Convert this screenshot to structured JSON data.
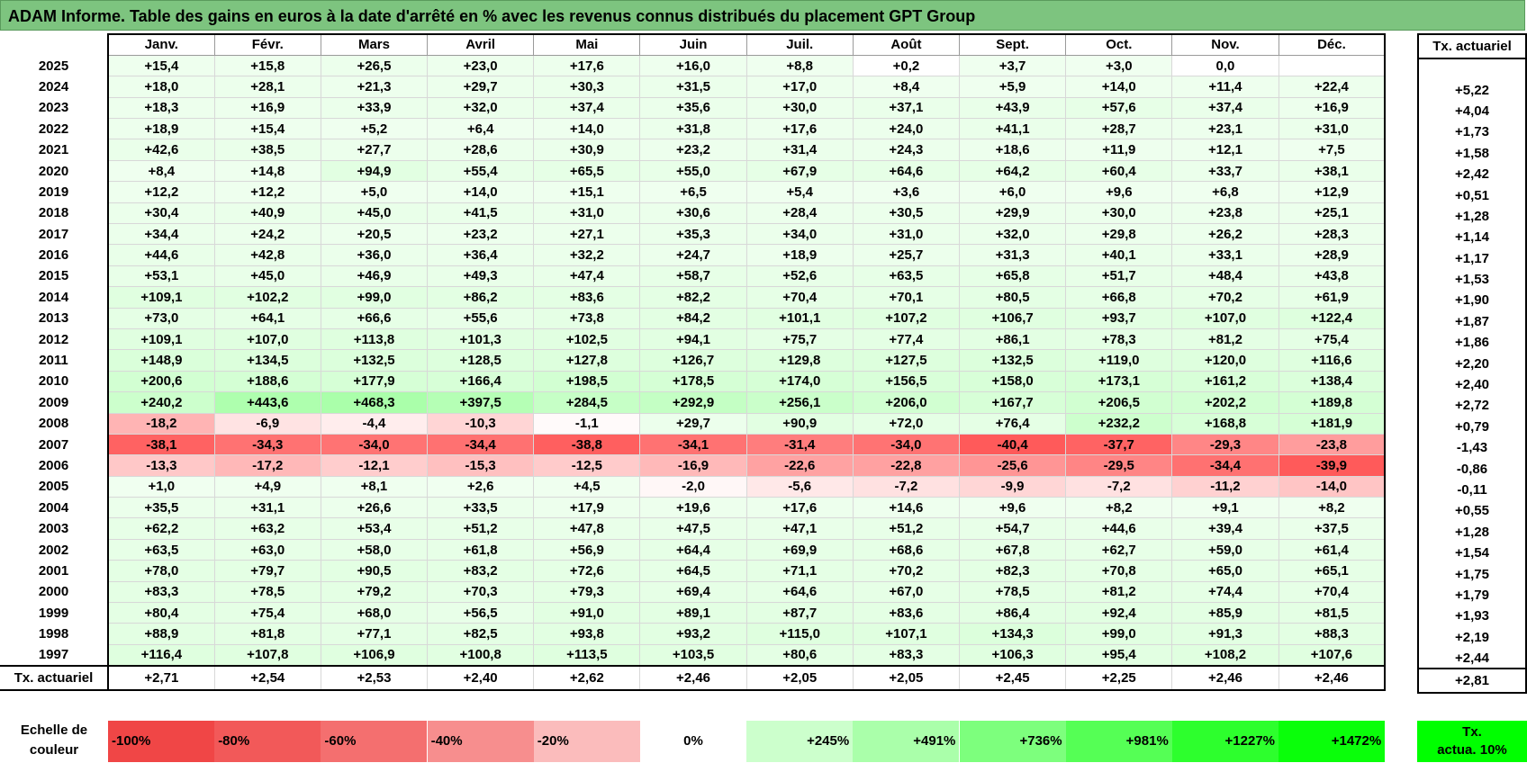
{
  "title": "ADAM Informe. Table des gains en euros à la date d'arrêté en % avec les revenus connus distribués du placement GPT Group",
  "months": [
    "Janv.",
    "Févr.",
    "Mars",
    "Avril",
    "Mai",
    "Juin",
    "Juil.",
    "Août",
    "Sept.",
    "Oct.",
    "Nov.",
    "Déc."
  ],
  "rate_header": "Tx. actuariel",
  "rows": [
    {
      "year": "2025",
      "values": [
        "+15,4",
        "+15,8",
        "+26,5",
        "+23,0",
        "+17,6",
        "+16,0",
        "+8,8",
        "+0,2",
        "+3,7",
        "+3,0",
        "0,0",
        ""
      ],
      "rate": ""
    },
    {
      "year": "2024",
      "values": [
        "+18,0",
        "+28,1",
        "+21,3",
        "+29,7",
        "+30,3",
        "+31,5",
        "+17,0",
        "+8,4",
        "+5,9",
        "+14,0",
        "+11,4",
        "+22,4"
      ],
      "rate": "+5,22"
    },
    {
      "year": "2023",
      "values": [
        "+18,3",
        "+16,9",
        "+33,9",
        "+32,0",
        "+37,4",
        "+35,6",
        "+30,0",
        "+37,1",
        "+43,9",
        "+57,6",
        "+37,4",
        "+16,9"
      ],
      "rate": "+4,04"
    },
    {
      "year": "2022",
      "values": [
        "+18,9",
        "+15,4",
        "+5,2",
        "+6,4",
        "+14,0",
        "+31,8",
        "+17,6",
        "+24,0",
        "+41,1",
        "+28,7",
        "+23,1",
        "+31,0"
      ],
      "rate": "+1,73"
    },
    {
      "year": "2021",
      "values": [
        "+42,6",
        "+38,5",
        "+27,7",
        "+28,6",
        "+30,9",
        "+23,2",
        "+31,4",
        "+24,3",
        "+18,6",
        "+11,9",
        "+12,1",
        "+7,5"
      ],
      "rate": "+1,58"
    },
    {
      "year": "2020",
      "values": [
        "+8,4",
        "+14,8",
        "+94,9",
        "+55,4",
        "+65,5",
        "+55,0",
        "+67,9",
        "+64,6",
        "+64,2",
        "+60,4",
        "+33,7",
        "+38,1"
      ],
      "rate": "+2,42"
    },
    {
      "year": "2019",
      "values": [
        "+12,2",
        "+12,2",
        "+5,0",
        "+14,0",
        "+15,1",
        "+6,5",
        "+5,4",
        "+3,6",
        "+6,0",
        "+9,6",
        "+6,8",
        "+12,9"
      ],
      "rate": "+0,51"
    },
    {
      "year": "2018",
      "values": [
        "+30,4",
        "+40,9",
        "+45,0",
        "+41,5",
        "+31,0",
        "+30,6",
        "+28,4",
        "+30,5",
        "+29,9",
        "+30,0",
        "+23,8",
        "+25,1"
      ],
      "rate": "+1,28"
    },
    {
      "year": "2017",
      "values": [
        "+34,4",
        "+24,2",
        "+20,5",
        "+23,2",
        "+27,1",
        "+35,3",
        "+34,0",
        "+31,0",
        "+32,0",
        "+29,8",
        "+26,2",
        "+28,3"
      ],
      "rate": "+1,14"
    },
    {
      "year": "2016",
      "values": [
        "+44,6",
        "+42,8",
        "+36,0",
        "+36,4",
        "+32,2",
        "+24,7",
        "+18,9",
        "+25,7",
        "+31,3",
        "+40,1",
        "+33,1",
        "+28,9"
      ],
      "rate": "+1,17"
    },
    {
      "year": "2015",
      "values": [
        "+53,1",
        "+45,0",
        "+46,9",
        "+49,3",
        "+47,4",
        "+58,7",
        "+52,6",
        "+63,5",
        "+65,8",
        "+51,7",
        "+48,4",
        "+43,8"
      ],
      "rate": "+1,53"
    },
    {
      "year": "2014",
      "values": [
        "+109,1",
        "+102,2",
        "+99,0",
        "+86,2",
        "+83,6",
        "+82,2",
        "+70,4",
        "+70,1",
        "+80,5",
        "+66,8",
        "+70,2",
        "+61,9"
      ],
      "rate": "+1,90"
    },
    {
      "year": "2013",
      "values": [
        "+73,0",
        "+64,1",
        "+66,6",
        "+55,6",
        "+73,8",
        "+84,2",
        "+101,1",
        "+107,2",
        "+106,7",
        "+93,7",
        "+107,0",
        "+122,4"
      ],
      "rate": "+1,87"
    },
    {
      "year": "2012",
      "values": [
        "+109,1",
        "+107,0",
        "+113,8",
        "+101,3",
        "+102,5",
        "+94,1",
        "+75,7",
        "+77,4",
        "+86,1",
        "+78,3",
        "+81,2",
        "+75,4"
      ],
      "rate": "+1,86"
    },
    {
      "year": "2011",
      "values": [
        "+148,9",
        "+134,5",
        "+132,5",
        "+128,5",
        "+127,8",
        "+126,7",
        "+129,8",
        "+127,5",
        "+132,5",
        "+119,0",
        "+120,0",
        "+116,6"
      ],
      "rate": "+2,20"
    },
    {
      "year": "2010",
      "values": [
        "+200,6",
        "+188,6",
        "+177,9",
        "+166,4",
        "+198,5",
        "+178,5",
        "+174,0",
        "+156,5",
        "+158,0",
        "+173,1",
        "+161,2",
        "+138,4"
      ],
      "rate": "+2,40"
    },
    {
      "year": "2009",
      "values": [
        "+240,2",
        "+443,6",
        "+468,3",
        "+397,5",
        "+284,5",
        "+292,9",
        "+256,1",
        "+206,0",
        "+167,7",
        "+206,5",
        "+202,2",
        "+189,8"
      ],
      "rate": "+2,72"
    },
    {
      "year": "2008",
      "values": [
        "-18,2",
        "-6,9",
        "-4,4",
        "-10,3",
        "-1,1",
        "+29,7",
        "+90,9",
        "+72,0",
        "+76,4",
        "+232,2",
        "+168,8",
        "+181,9"
      ],
      "rate": "+0,79"
    },
    {
      "year": "2007",
      "values": [
        "-38,1",
        "-34,3",
        "-34,0",
        "-34,4",
        "-38,8",
        "-34,1",
        "-31,4",
        "-34,0",
        "-40,4",
        "-37,7",
        "-29,3",
        "-23,8"
      ],
      "rate": "-1,43"
    },
    {
      "year": "2006",
      "values": [
        "-13,3",
        "-17,2",
        "-12,1",
        "-15,3",
        "-12,5",
        "-16,9",
        "-22,6",
        "-22,8",
        "-25,6",
        "-29,5",
        "-34,4",
        "-39,9"
      ],
      "rate": "-0,86"
    },
    {
      "year": "2005",
      "values": [
        "+1,0",
        "+4,9",
        "+8,1",
        "+2,6",
        "+4,5",
        "-2,0",
        "-5,6",
        "-7,2",
        "-9,9",
        "-7,2",
        "-11,2",
        "-14,0"
      ],
      "rate": "-0,11"
    },
    {
      "year": "2004",
      "values": [
        "+35,5",
        "+31,1",
        "+26,6",
        "+33,5",
        "+17,9",
        "+19,6",
        "+17,6",
        "+14,6",
        "+9,6",
        "+8,2",
        "+9,1",
        "+8,2"
      ],
      "rate": "+0,55"
    },
    {
      "year": "2003",
      "values": [
        "+62,2",
        "+63,2",
        "+53,4",
        "+51,2",
        "+47,8",
        "+47,5",
        "+47,1",
        "+51,2",
        "+54,7",
        "+44,6",
        "+39,4",
        "+37,5"
      ],
      "rate": "+1,28"
    },
    {
      "year": "2002",
      "values": [
        "+63,5",
        "+63,0",
        "+58,0",
        "+61,8",
        "+56,9",
        "+64,4",
        "+69,9",
        "+68,6",
        "+67,8",
        "+62,7",
        "+59,0",
        "+61,4"
      ],
      "rate": "+1,54"
    },
    {
      "year": "2001",
      "values": [
        "+78,0",
        "+79,7",
        "+90,5",
        "+83,2",
        "+72,6",
        "+64,5",
        "+71,1",
        "+70,2",
        "+82,3",
        "+70,8",
        "+65,0",
        "+65,1"
      ],
      "rate": "+1,75"
    },
    {
      "year": "2000",
      "values": [
        "+83,3",
        "+78,5",
        "+79,2",
        "+70,3",
        "+79,3",
        "+69,4",
        "+64,6",
        "+67,0",
        "+78,5",
        "+81,2",
        "+74,4",
        "+70,4"
      ],
      "rate": "+1,79"
    },
    {
      "year": "1999",
      "values": [
        "+80,4",
        "+75,4",
        "+68,0",
        "+56,5",
        "+91,0",
        "+89,1",
        "+87,7",
        "+83,6",
        "+86,4",
        "+92,4",
        "+85,9",
        "+81,5"
      ],
      "rate": "+1,93"
    },
    {
      "year": "1998",
      "values": [
        "+88,9",
        "+81,8",
        "+77,1",
        "+82,5",
        "+93,8",
        "+93,2",
        "+115,0",
        "+107,1",
        "+134,3",
        "+99,0",
        "+91,3",
        "+88,3"
      ],
      "rate": "+2,19"
    },
    {
      "year": "1997",
      "values": [
        "+116,4",
        "+107,8",
        "+106,9",
        "+100,8",
        "+113,5",
        "+103,5",
        "+80,6",
        "+83,3",
        "+106,3",
        "+95,4",
        "+108,2",
        "+107,6"
      ],
      "rate": "+2,44"
    }
  ],
  "footer": {
    "label": "Tx. actuariel",
    "values": [
      "+2,71",
      "+2,54",
      "+2,53",
      "+2,40",
      "+2,62",
      "+2,46",
      "+2,05",
      "+2,05",
      "+2,45",
      "+2,25",
      "+2,46",
      "+2,46"
    ],
    "rate": "+2,81"
  },
  "legend": {
    "label_line1": "Echelle de",
    "label_line2": "couleur",
    "items": [
      {
        "label": "-100%",
        "color": "#f04646",
        "align": "left"
      },
      {
        "label": "-80%",
        "color": "#f25959",
        "align": "left"
      },
      {
        "label": "-60%",
        "color": "#f46f6f",
        "align": "left"
      },
      {
        "label": "-40%",
        "color": "#f78e8e",
        "align": "left"
      },
      {
        "label": "-20%",
        "color": "#fbbcbc",
        "align": "left"
      },
      {
        "label": "0%",
        "color": "#ffffff",
        "align": "center"
      },
      {
        "label": "+245%",
        "color": "#ccffcc",
        "align": "right"
      },
      {
        "label": "+491%",
        "color": "#aaffaa",
        "align": "right"
      },
      {
        "label": "+736%",
        "color": "#7dff7d",
        "align": "right"
      },
      {
        "label": "+981%",
        "color": "#55ff55",
        "align": "right"
      },
      {
        "label": "+1227%",
        "color": "#2dff2d",
        "align": "right"
      },
      {
        "label": "+1472%",
        "color": "#0aff0a",
        "align": "right"
      }
    ],
    "rate_line1": "Tx.",
    "rate_line2": "actua. 10%",
    "rate_color": "#00ff00"
  },
  "colors": {
    "title_bg": "#7dc47f",
    "positive_light": "#f2fff2",
    "negative_scale_base": "#ffffff"
  }
}
